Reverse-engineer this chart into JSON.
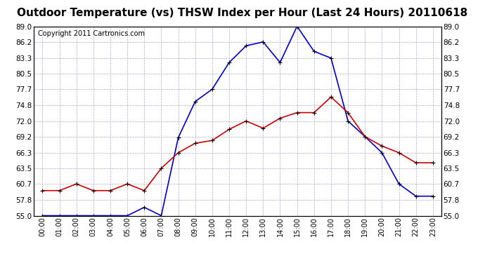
{
  "title": "Outdoor Temperature (vs) THSW Index per Hour (Last 24 Hours) 20110618",
  "copyright": "Copyright 2011 Cartronics.com",
  "hours": [
    "00:00",
    "01:00",
    "02:00",
    "03:00",
    "04:00",
    "05:00",
    "06:00",
    "07:00",
    "08:00",
    "09:00",
    "10:00",
    "11:00",
    "12:00",
    "13:00",
    "14:00",
    "15:00",
    "16:00",
    "17:00",
    "18:00",
    "19:00",
    "20:00",
    "21:00",
    "22:00",
    "23:00"
  ],
  "outdoor_temp": [
    59.5,
    59.5,
    60.7,
    59.5,
    59.5,
    60.7,
    59.5,
    63.5,
    66.3,
    68.0,
    68.5,
    70.5,
    72.0,
    70.7,
    72.5,
    73.5,
    73.5,
    76.3,
    73.5,
    69.2,
    67.5,
    66.3,
    64.5,
    64.5
  ],
  "thsw_index": [
    55.0,
    55.0,
    55.0,
    55.0,
    55.0,
    55.0,
    56.5,
    55.0,
    69.0,
    75.5,
    77.7,
    82.5,
    85.5,
    86.2,
    82.5,
    89.0,
    84.5,
    83.3,
    72.0,
    69.2,
    66.3,
    60.7,
    58.5,
    58.5
  ],
  "temp_color": "#cc0000",
  "thsw_color": "#0000cc",
  "bg_color": "#ffffff",
  "grid_color": "#aaaacc",
  "ylim": [
    55.0,
    89.0
  ],
  "yticks": [
    55.0,
    57.8,
    60.7,
    63.5,
    66.3,
    69.2,
    72.0,
    74.8,
    77.7,
    80.5,
    83.3,
    86.2,
    89.0
  ],
  "title_fontsize": 11,
  "copyright_fontsize": 7,
  "marker": "+",
  "marker_size": 5,
  "marker_color": "#000000",
  "line_width": 1.2
}
